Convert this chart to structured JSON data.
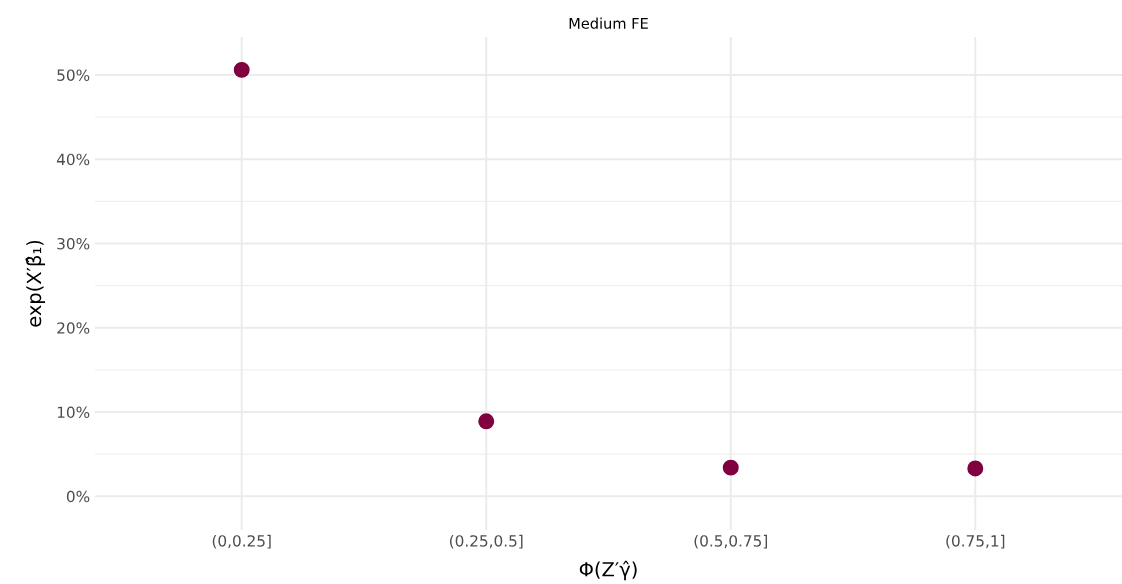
{
  "chart_data": {
    "type": "scatter",
    "title": "Medium FE",
    "xlabel": "Φ(Z′γ̂)",
    "ylabel": "exp(X′β̂₁)",
    "categories": [
      "(0,0.25]",
      "(0.25,0.5]",
      "(0.5,0.75]",
      "(0.75,1]"
    ],
    "series": [
      {
        "color": "#800040",
        "values": [
          50.6,
          8.9,
          3.4,
          3.3
        ]
      }
    ],
    "ylim": [
      -4,
      54.5
    ],
    "yticks": [
      {
        "value": 0,
        "label": "0%"
      },
      {
        "value": 5,
        "label": null
      },
      {
        "value": 10,
        "label": "10%"
      },
      {
        "value": 15,
        "label": null
      },
      {
        "value": 20,
        "label": "20%"
      },
      {
        "value": 25,
        "label": null
      },
      {
        "value": 30,
        "label": "30%"
      },
      {
        "value": 35,
        "label": null
      },
      {
        "value": 40,
        "label": "40%"
      },
      {
        "value": 45,
        "label": null
      },
      {
        "value": 50,
        "label": "50%"
      }
    ],
    "grid": true,
    "marker": "circle",
    "legend": false
  }
}
